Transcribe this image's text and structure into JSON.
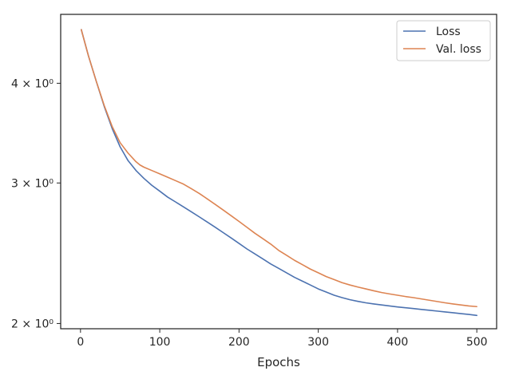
{
  "chart_data": {
    "type": "line",
    "title": "",
    "xlabel": "Epochs",
    "ylabel": "",
    "yscale": "log",
    "xlim": [
      -25,
      525
    ],
    "ylim": [
      1.97,
      4.88
    ],
    "grid": false,
    "legend_position": "top-right",
    "x_ticks": [
      {
        "value": 0,
        "label": "0"
      },
      {
        "value": 100,
        "label": "100"
      },
      {
        "value": 200,
        "label": "200"
      },
      {
        "value": 300,
        "label": "300"
      },
      {
        "value": 400,
        "label": "400"
      },
      {
        "value": 500,
        "label": "500"
      }
    ],
    "y_ticks": [
      {
        "value": 2,
        "label": "2 × 10⁰"
      },
      {
        "value": 3,
        "label": "3 × 10⁰"
      },
      {
        "value": 4,
        "label": "4 × 10⁰"
      }
    ],
    "series": [
      {
        "name": "Loss",
        "color": "#4c72b0",
        "x": [
          1,
          10,
          20,
          30,
          40,
          50,
          60,
          70,
          80,
          90,
          100,
          110,
          120,
          130,
          140,
          150,
          160,
          170,
          180,
          190,
          200,
          210,
          220,
          230,
          240,
          250,
          260,
          270,
          280,
          290,
          300,
          310,
          320,
          330,
          340,
          350,
          360,
          370,
          380,
          390,
          400,
          410,
          420,
          430,
          440,
          450,
          460,
          470,
          480,
          490,
          500
        ],
        "y": [
          4.67,
          4.33,
          4.02,
          3.74,
          3.51,
          3.33,
          3.2,
          3.11,
          3.04,
          2.98,
          2.93,
          2.88,
          2.84,
          2.8,
          2.76,
          2.72,
          2.68,
          2.64,
          2.6,
          2.56,
          2.52,
          2.48,
          2.445,
          2.41,
          2.375,
          2.345,
          2.315,
          2.285,
          2.26,
          2.235,
          2.21,
          2.19,
          2.17,
          2.155,
          2.142,
          2.132,
          2.123,
          2.116,
          2.11,
          2.104,
          2.098,
          2.093,
          2.088,
          2.083,
          2.078,
          2.073,
          2.068,
          2.063,
          2.058,
          2.053,
          2.047
        ]
      },
      {
        "name": "Val. loss",
        "color": "#dd8452",
        "x": [
          1,
          10,
          20,
          30,
          40,
          50,
          60,
          70,
          75,
          80,
          90,
          100,
          110,
          120,
          130,
          140,
          150,
          160,
          170,
          180,
          190,
          200,
          210,
          220,
          230,
          240,
          250,
          260,
          270,
          280,
          290,
          300,
          310,
          320,
          330,
          340,
          350,
          360,
          370,
          380,
          390,
          400,
          410,
          420,
          430,
          440,
          450,
          460,
          470,
          480,
          490,
          500
        ],
        "y": [
          4.67,
          4.33,
          4.02,
          3.75,
          3.53,
          3.37,
          3.27,
          3.19,
          3.16,
          3.14,
          3.11,
          3.08,
          3.05,
          3.02,
          2.99,
          2.95,
          2.91,
          2.865,
          2.82,
          2.775,
          2.73,
          2.685,
          2.64,
          2.595,
          2.555,
          2.515,
          2.47,
          2.435,
          2.4,
          2.37,
          2.34,
          2.315,
          2.29,
          2.27,
          2.25,
          2.235,
          2.222,
          2.21,
          2.198,
          2.187,
          2.178,
          2.17,
          2.162,
          2.155,
          2.147,
          2.139,
          2.131,
          2.123,
          2.116,
          2.11,
          2.104,
          2.1
        ]
      }
    ]
  }
}
